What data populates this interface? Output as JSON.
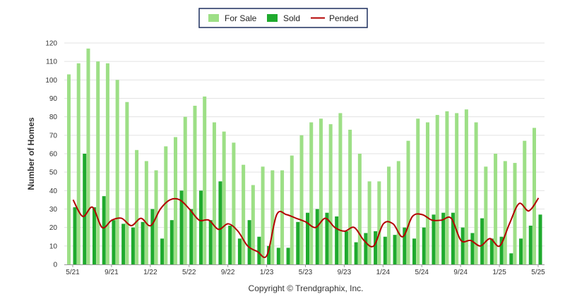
{
  "chart_data": {
    "type": "bar",
    "ylabel": "Number of Homes",
    "ylim": [
      0,
      120
    ],
    "yticks": [
      0,
      10,
      20,
      30,
      40,
      50,
      60,
      70,
      80,
      90,
      100,
      110,
      120
    ],
    "grid": true,
    "legend_position": "top-center",
    "categories": [
      "5/21",
      "6/21",
      "7/21",
      "8/21",
      "9/21",
      "10/21",
      "11/21",
      "12/21",
      "1/22",
      "2/22",
      "3/22",
      "4/22",
      "5/22",
      "6/22",
      "7/22",
      "8/22",
      "9/22",
      "10/22",
      "11/22",
      "12/22",
      "1/23",
      "2/23",
      "3/23",
      "4/23",
      "5/23",
      "6/23",
      "7/23",
      "8/23",
      "9/23",
      "10/23",
      "11/23",
      "12/23",
      "1/24",
      "2/24",
      "3/24",
      "4/24",
      "5/24",
      "6/24",
      "7/24",
      "8/24",
      "9/24",
      "10/24",
      "11/24",
      "12/24",
      "1/25",
      "2/25",
      "3/25",
      "4/25",
      "5/25"
    ],
    "xtick_labels": [
      "5/21",
      "",
      "",
      "",
      "9/21",
      "",
      "",
      "",
      "1/22",
      "",
      "",
      "",
      "5/22",
      "",
      "",
      "",
      "9/22",
      "",
      "",
      "",
      "1/23",
      "",
      "",
      "",
      "5/23",
      "",
      "",
      "",
      "9/23",
      "",
      "",
      "",
      "1/24",
      "",
      "",
      "",
      "5/24",
      "",
      "",
      "",
      "9/24",
      "",
      "",
      "",
      "1/25",
      "",
      "",
      "",
      "5/25"
    ],
    "series": [
      {
        "name": "For Sale",
        "type": "bar",
        "color": "#9ddf86",
        "values": [
          103,
          109,
          117,
          110,
          109,
          100,
          88,
          62,
          56,
          51,
          64,
          69,
          80,
          86,
          91,
          77,
          72,
          66,
          54,
          43,
          53,
          51,
          51,
          59,
          70,
          77,
          79,
          76,
          82,
          73,
          60,
          45,
          45,
          53,
          56,
          67,
          79,
          77,
          81,
          83,
          82,
          84,
          77,
          53,
          60,
          56,
          55,
          67,
          74
        ]
      },
      {
        "name": "Sold",
        "type": "bar",
        "color": "#1faa2e",
        "values": [
          31,
          60,
          31,
          37,
          24,
          22,
          20,
          23,
          30,
          14,
          24,
          40,
          30,
          40,
          24,
          45,
          21,
          14,
          24,
          15,
          10,
          9,
          9,
          23,
          28,
          30,
          28,
          26,
          18,
          12,
          17,
          18,
          15,
          16,
          20,
          14,
          20,
          27,
          28,
          28,
          20,
          17,
          25,
          14,
          15,
          6,
          14,
          21,
          27
        ]
      },
      {
        "name": "Pended",
        "type": "line",
        "color": "#b30000",
        "values": [
          35,
          26,
          31,
          20,
          24,
          25,
          21,
          25,
          21,
          30,
          35,
          35,
          30,
          24,
          24,
          19,
          22,
          18,
          10,
          7,
          5,
          27,
          27,
          25,
          23,
          20,
          25,
          20,
          18,
          20,
          13,
          10,
          22,
          22,
          15,
          26,
          27,
          24,
          24,
          25,
          13,
          13,
          10,
          14,
          10,
          22,
          33,
          29,
          36
        ]
      }
    ]
  },
  "copyright": "Copyright © Trendgraphix, Inc."
}
